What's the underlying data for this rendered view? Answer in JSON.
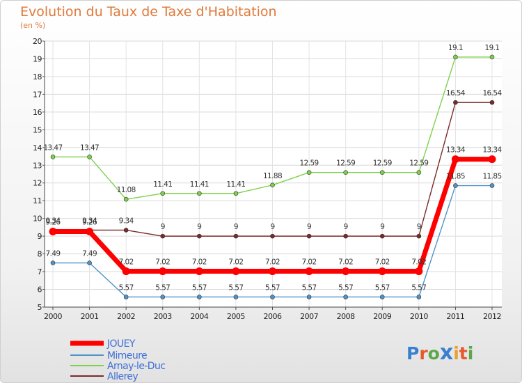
{
  "title": "Evolution du Taux de Taxe d'Habitation",
  "unit": "(en %)",
  "logo": "Proxiti",
  "chart_data": {
    "type": "line",
    "x": [
      "2000",
      "2001",
      "2002",
      "2003",
      "2004",
      "2005",
      "2006",
      "2007",
      "2008",
      "2009",
      "2010",
      "2011",
      "2012"
    ],
    "ylim": [
      5,
      20
    ],
    "yticks": [
      5,
      6,
      7,
      8,
      9,
      10,
      11,
      12,
      13,
      14,
      15,
      16,
      17,
      18,
      19,
      20
    ],
    "grid": true,
    "legend_position": "bottom-left",
    "series": [
      {
        "name": "JOUEY",
        "color": "#ff0000",
        "values": [
          9.26,
          9.26,
          7.02,
          7.02,
          7.02,
          7.02,
          7.02,
          7.02,
          7.02,
          7.02,
          7.02,
          13.34,
          13.34
        ],
        "labels": [
          "9.26",
          "9.26",
          "7.02",
          "7.02",
          "7.02",
          "7.02",
          "7.02",
          "7.02",
          "7.02",
          "7.02",
          "7.02",
          "13.34",
          "13.34"
        ]
      },
      {
        "name": "Mimeure",
        "color": "#4f93c8",
        "values": [
          7.49,
          7.49,
          5.57,
          5.57,
          5.57,
          5.57,
          5.57,
          5.57,
          5.57,
          5.57,
          5.57,
          11.85,
          11.85
        ],
        "labels": [
          "7.49",
          "7.49",
          "5.57",
          "5.57",
          "5.57",
          "5.57",
          "5.57",
          "5.57",
          "5.57",
          "5.57",
          "5.57",
          "11.85",
          "11.85"
        ]
      },
      {
        "name": "Arnay-le-Duc",
        "color": "#7dd24a",
        "values": [
          13.47,
          13.47,
          11.08,
          11.41,
          11.41,
          11.41,
          11.88,
          12.59,
          12.59,
          12.59,
          12.59,
          19.1,
          19.1
        ],
        "labels": [
          "13.47",
          "13.47",
          "11.08",
          "11.41",
          "11.41",
          "11.41",
          "11.88",
          "12.59",
          "12.59",
          "12.59",
          "12.59",
          "19.1",
          "19.1"
        ]
      },
      {
        "name": "Allerey",
        "color": "#7a2a2a",
        "values": [
          9.34,
          9.34,
          9.34,
          9,
          9,
          9,
          9,
          9,
          9,
          9,
          9,
          16.54,
          16.54
        ],
        "labels": [
          "9.34",
          "9.34",
          "9.34",
          "9",
          "9",
          "9",
          "9",
          "9",
          "9",
          "9",
          "9",
          "16.54",
          "16.54"
        ]
      }
    ]
  }
}
